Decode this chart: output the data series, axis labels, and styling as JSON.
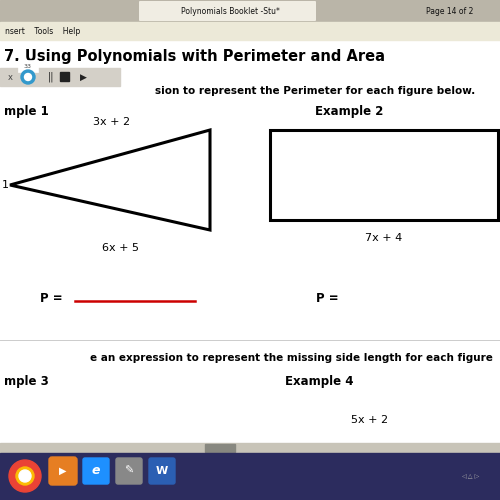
{
  "title": "7. Using Polynomials with Perimeter and Area",
  "instruction": "sion to represent the Perimeter for each figure below.",
  "example1_label": "mple 1",
  "example2_label": "Example 2",
  "triangle_label_top": "3x + 2",
  "triangle_label_bottom": "6x + 5",
  "triangle_side_label": "1",
  "rect_label_bottom": "7x + 4",
  "p_label1": "P =",
  "p_label2": "P =",
  "underline_color": "#cc0000",
  "section2_instruction": "e an expression to represent the missing side length for each figure",
  "example3_label": "mple 3",
  "example4_label": "Example 4",
  "example4_side": "5x + 2",
  "bg_color": "#ffffff",
  "text_color": "#000000",
  "tab_bg": "#d4d0c8",
  "menubar_bg": "#ece9d8",
  "toolbar_bg": "#d4d0c8",
  "taskbar_bg": "#2c2c5e",
  "figsize": [
    5.0,
    5.0
  ],
  "dpi": 100,
  "tab_text": "Polynomials Booklet -Stu*",
  "page_text": "Page 14 of 2"
}
